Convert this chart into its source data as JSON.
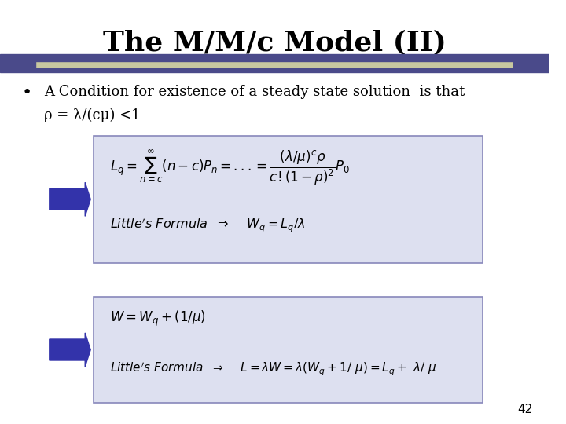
{
  "title": "The M/M/c Model (II)",
  "title_fontsize": 26,
  "title_fontweight": "bold",
  "bg_color": "#ffffff",
  "header_bar_color1": "#4a4a8a",
  "header_bar_color2": "#c8c8a0",
  "bullet_text_line1": "A Condition for existence of a steady state solution  is that",
  "bullet_text_line2": "ρ = λ/(cμ) <1",
  "box1_bg": "#dde0f0",
  "box1_border": "#8888bb",
  "box2_bg": "#dde0f0",
  "box2_border": "#8888bb",
  "arrow_color": "#3333aa",
  "page_number": "42",
  "formula_box1_line1": "$L_q = \\sum_{n=c}^{\\infty}(n-c)P_n = ... = \\dfrac{(\\lambda/\\mu)^c\\rho}{c!(1-\\rho)^2}P_0$",
  "formula_box1_line2": "Little's Formula  $\\Rightarrow$    $W_q=L_q/\\lambda$",
  "formula_box2_line1": "$W=W_q+(1/\\mu)$",
  "formula_box2_line2": "Little's Formula  $\\Rightarrow$    $L=\\lambda W= \\lambda(W_q+1/\\mu) = L_q+ \\lambda/\\mu$"
}
